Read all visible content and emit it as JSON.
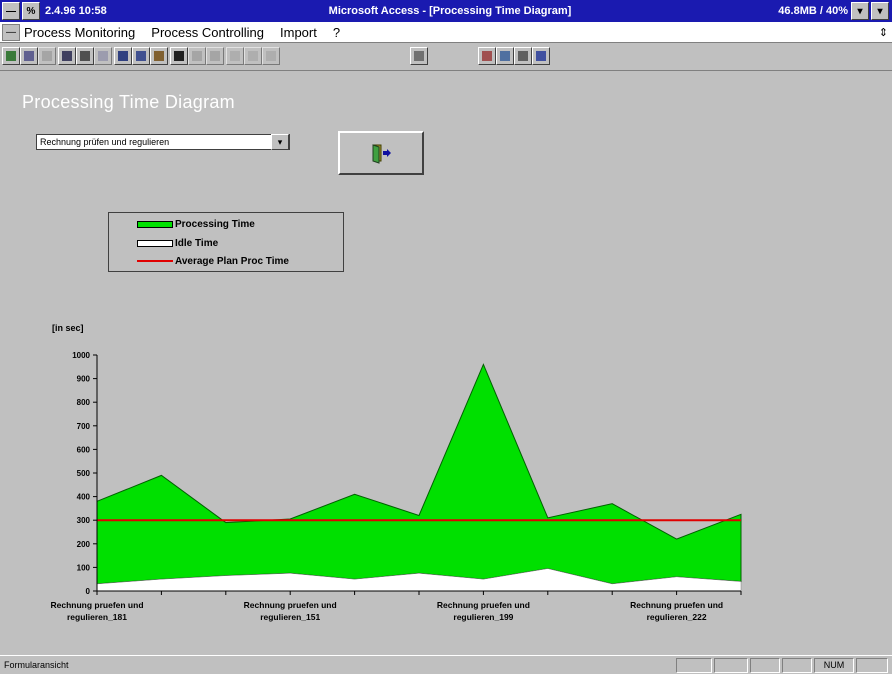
{
  "window": {
    "sysbox_glyph": "—",
    "clock_glyph": "%",
    "left_text": "2.4.96  10:58",
    "title": "Microsoft Access - [Processing Time Diagram]",
    "memory": "46.8MB / 40%",
    "max_glyph": "▾",
    "extra_glyph": "▾"
  },
  "menu": {
    "items": [
      "Process Monitoring",
      "Process Controlling",
      "Import",
      "?"
    ],
    "right_glyph": "⇕"
  },
  "form": {
    "title": "Processing Time Diagram",
    "combo_value": "Rechnung prüfen und regulieren",
    "combo_arrow": "▾"
  },
  "legend": {
    "items": [
      {
        "label": "Processing Time",
        "color": "#00e000"
      },
      {
        "label": "Idle Time",
        "color": "#ffffff"
      },
      {
        "label": "Average Plan Proc Time",
        "color": "#e00000"
      }
    ]
  },
  "chart_data": {
    "type": "area",
    "ylabel": "[in sec]",
    "ylim": [
      0,
      1000
    ],
    "yticks": [
      0,
      100,
      200,
      300,
      400,
      500,
      600,
      700,
      800,
      900,
      1000
    ],
    "x_labels": [
      {
        "line1": "Rechnung pruefen und",
        "line2": "regulieren_181",
        "index": 0
      },
      {
        "line1": "Rechnung pruefen und",
        "line2": "regulieren_151",
        "index": 3
      },
      {
        "line1": "Rechnung pruefen und",
        "line2": "regulieren_199",
        "index": 6
      },
      {
        "line1": "Rechnung pruefen und",
        "line2": "regulieren_222",
        "index": 9
      }
    ],
    "series": [
      {
        "name": "Idle Time",
        "values": [
          30,
          50,
          65,
          75,
          50,
          75,
          50,
          95,
          30,
          60,
          40
        ]
      },
      {
        "name": "Processing Time",
        "values": [
          380,
          490,
          290,
          305,
          410,
          320,
          960,
          310,
          370,
          220,
          325
        ]
      },
      {
        "name": "Average Plan Proc Time",
        "values": [
          300,
          300,
          300,
          300,
          300,
          300,
          300,
          300,
          300,
          300,
          300
        ]
      }
    ]
  },
  "status": {
    "text": "Formularansicht",
    "cells": [
      "",
      "",
      "",
      "",
      "NUM",
      ""
    ]
  }
}
